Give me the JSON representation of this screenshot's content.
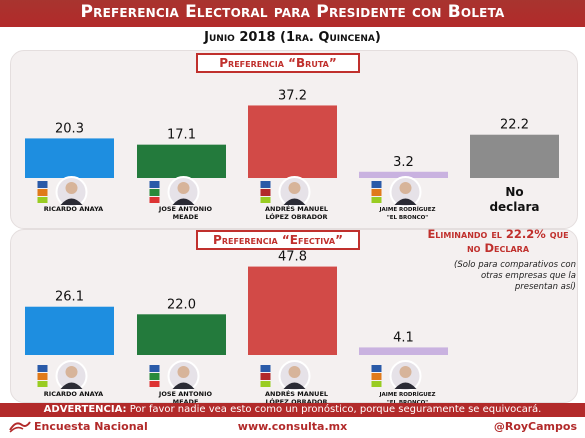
{
  "header": {
    "title": "Preferencia Electoral para Presidente con Boleta",
    "subtitle": "Junio 2018 (1ra. Quincena)"
  },
  "notes": {
    "eliminando": "Eliminando el 22.2% que no Declara",
    "aclaracion": "(Solo para comparativos con otras empresas que la presentan así)"
  },
  "advertencia": {
    "label": "ADVERTENCIA:",
    "text": "Por favor nadie vea esto como un pronóstico, porque seguramente se equivocará."
  },
  "footer": {
    "left": "Encuesta Nacional",
    "center": "www.consulta.mx",
    "right": "@RoyCampos"
  },
  "candidates": [
    {
      "name": [
        "RICARDO ANAYA"
      ],
      "color": "#1e8ee0"
    },
    {
      "name": [
        "JOSE ANTONIO",
        "MEADE"
      ],
      "color": "#237a3c"
    },
    {
      "name": [
        "ANDRÉS MANUEL",
        "LÓPEZ OBRADOR"
      ],
      "color": "#d24a47"
    },
    {
      "name": [
        "JAIME RODRÍGUEZ",
        "\"EL BRONCO\""
      ],
      "color": "#c9b2e0"
    },
    {
      "name": [
        "No",
        "declara"
      ],
      "color": "#8c8c8c"
    }
  ],
  "chart_data": [
    {
      "type": "bar",
      "title": "Preferencia “Bruta”",
      "categories": [
        "Ricardo Anaya",
        "José Antonio Meade",
        "Andrés Manuel López Obrador",
        "Jaime Rodríguez \"El Bronco\"",
        "No declara"
      ],
      "values": [
        20.3,
        17.1,
        37.2,
        3.2,
        22.2
      ],
      "labels": [
        "20.3",
        "17.1",
        "37.2",
        "3.2",
        "22.2"
      ]
    },
    {
      "type": "bar",
      "title": "Preferencia “Efectiva”",
      "categories": [
        "Ricardo Anaya",
        "José Antonio Meade",
        "Andrés Manuel López Obrador",
        "Jaime Rodríguez \"El Bronco\""
      ],
      "values": [
        26.1,
        22.0,
        47.8,
        4.1
      ],
      "labels": [
        "26.1",
        "22.0",
        "47.8",
        "4.1"
      ]
    }
  ]
}
